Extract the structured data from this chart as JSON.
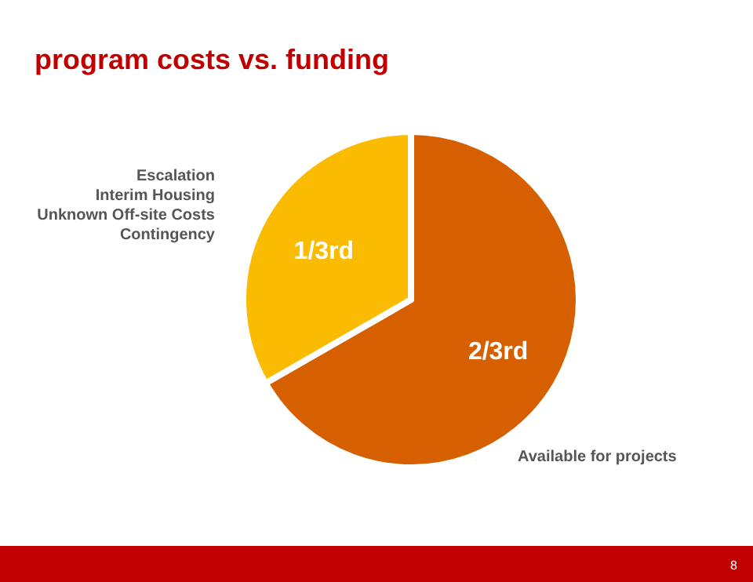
{
  "chart_data": {
    "type": "pie",
    "title": "program costs vs. funding",
    "categories": [
      "Available for projects",
      "Escalation\nInterim Housing\nUnknown Off-site Costs\nContingency"
    ],
    "values": [
      66.7,
      33.3
    ],
    "colors": [
      "#d65f00",
      "#fbbb00"
    ],
    "value_labels": [
      "2/3rd",
      "1/3rd"
    ],
    "annotations": [
      "8"
    ]
  }
}
